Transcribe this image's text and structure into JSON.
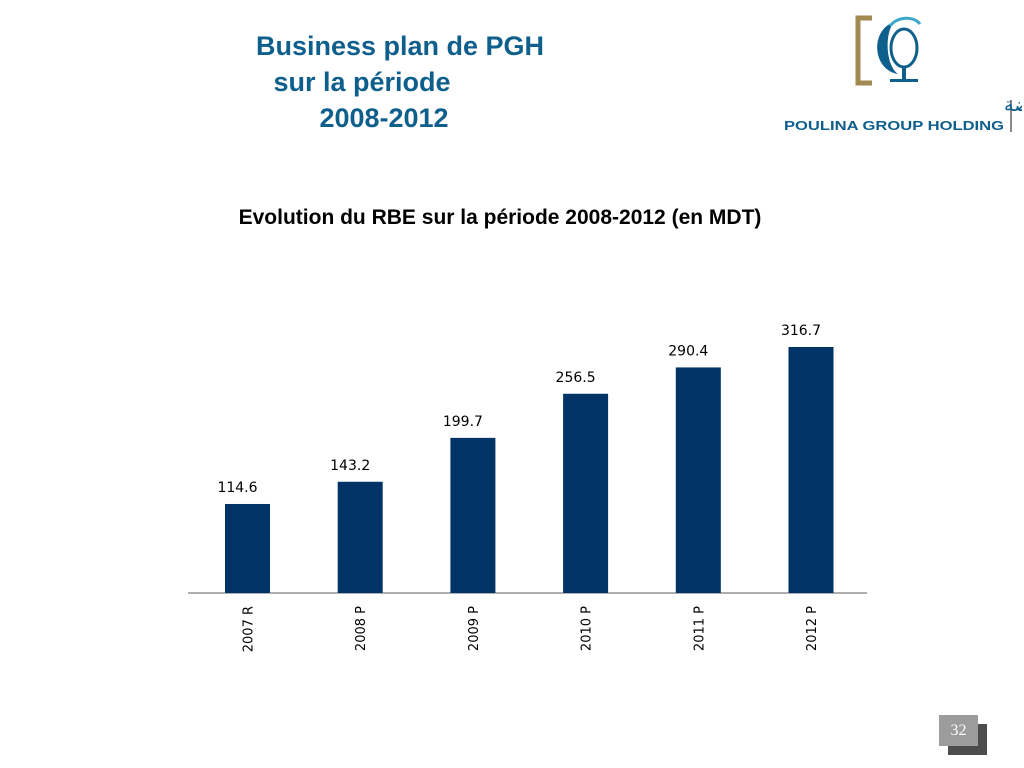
{
  "header": {
    "title_lines": [
      "Business plan de PGH",
      "sur la période",
      "2008-2012"
    ]
  },
  "logo": {
    "arabic_text": "مجموعة بولينـا القابضة",
    "latin_text": "POULINA GROUP HOLDING",
    "colors": {
      "primary": "#0f5f8c",
      "accent": "#3fa7c9",
      "bronze": "#a08a52"
    }
  },
  "page_number": "32",
  "colors": {
    "bar": "#003366",
    "title": "#0f5f8c"
  },
  "chart_data": {
    "type": "bar",
    "title": "Evolution du RBE sur la période 2008-2012 (en MDT)",
    "xlabel": "",
    "ylabel": "",
    "categories": [
      "2007 R",
      "2008 P",
      "2009 P",
      "2010 P",
      "2011 P",
      "2012 P"
    ],
    "values": [
      114.6,
      143.2,
      199.7,
      256.5,
      290.4,
      316.7
    ],
    "data_labels": [
      "114.6",
      "143.2",
      "199.7",
      "256.5",
      "290.4",
      "316.7"
    ],
    "grid": false,
    "legend": "none"
  }
}
